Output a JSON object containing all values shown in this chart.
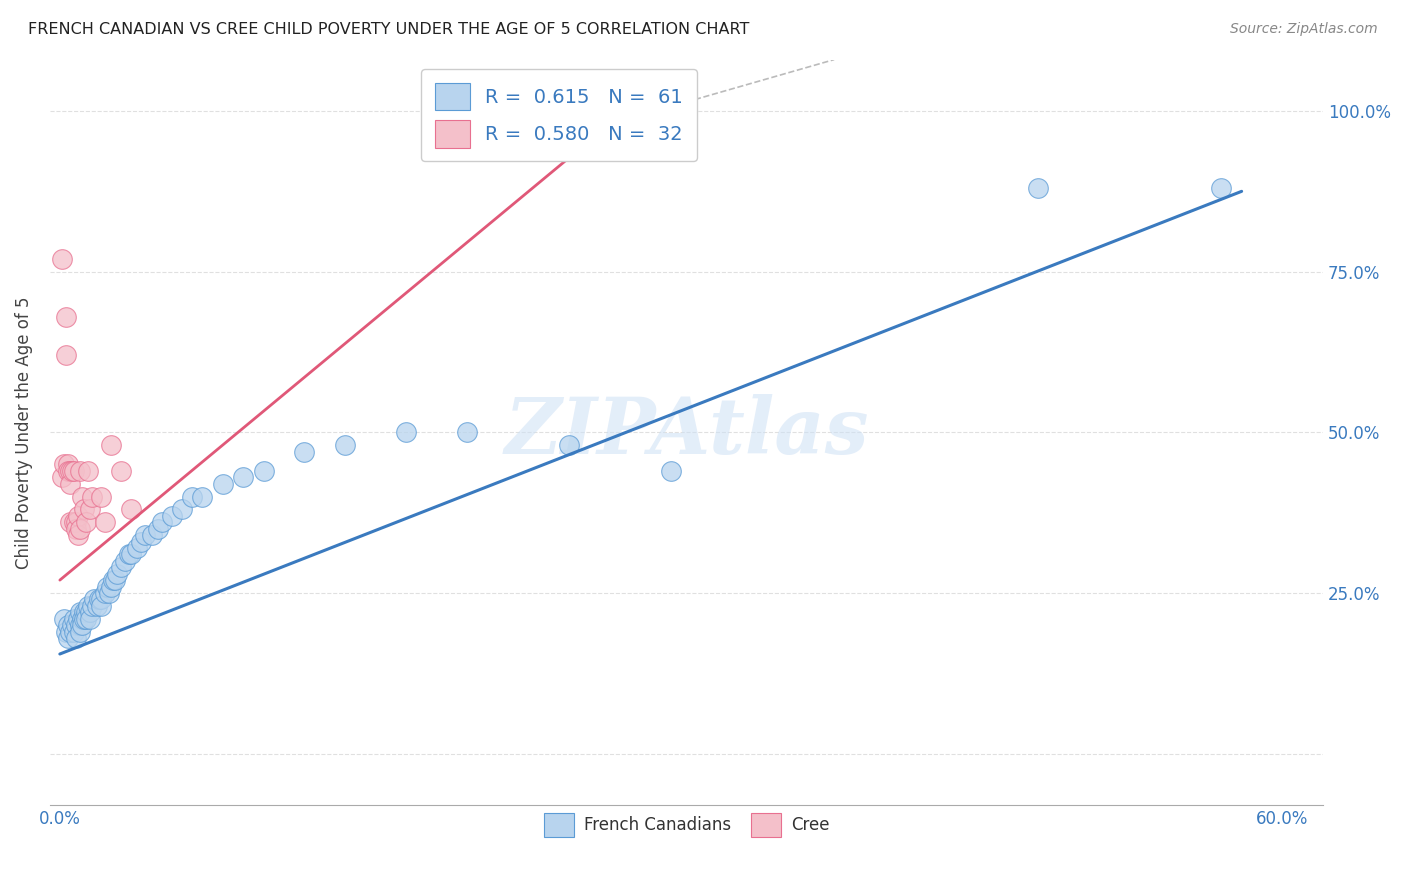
{
  "title": "FRENCH CANADIAN VS CREE CHILD POVERTY UNDER THE AGE OF 5 CORRELATION CHART",
  "source": "Source: ZipAtlas.com",
  "ylabel": "Child Poverty Under the Age of 5",
  "xlim": [
    -0.005,
    0.62
  ],
  "ylim": [
    -0.08,
    1.08
  ],
  "xticks": [
    0.0,
    0.1,
    0.2,
    0.3,
    0.4,
    0.5,
    0.6
  ],
  "xtick_labels": [
    "0.0%",
    "",
    "",
    "",
    "",
    "",
    "60.0%"
  ],
  "yticks": [
    0.0,
    0.25,
    0.5,
    0.75,
    1.0
  ],
  "ytick_labels": [
    "",
    "25.0%",
    "50.0%",
    "75.0%",
    "100.0%"
  ],
  "watermark": "ZIPAtlas",
  "r_fc": 0.615,
  "n_fc": 61,
  "r_cree": 0.58,
  "n_cree": 32,
  "fc_color": "#b8d4ee",
  "cree_color": "#f4c0ca",
  "fc_edge_color": "#5b9bd5",
  "cree_edge_color": "#e87090",
  "fc_line_color": "#3a7abf",
  "cree_line_color": "#e05878",
  "legend_text_color": "#3a7abf",
  "background_color": "#ffffff",
  "grid_color": "#e0e0e0",
  "title_color": "#222222",
  "source_color": "#888888",
  "ylabel_color": "#444444",
  "fc_points_x": [
    0.002,
    0.003,
    0.004,
    0.004,
    0.005,
    0.006,
    0.007,
    0.007,
    0.008,
    0.008,
    0.009,
    0.01,
    0.01,
    0.01,
    0.011,
    0.011,
    0.012,
    0.012,
    0.013,
    0.013,
    0.014,
    0.015,
    0.015,
    0.016,
    0.017,
    0.018,
    0.019,
    0.02,
    0.02,
    0.022,
    0.023,
    0.024,
    0.025,
    0.026,
    0.027,
    0.028,
    0.03,
    0.032,
    0.034,
    0.035,
    0.038,
    0.04,
    0.042,
    0.045,
    0.048,
    0.05,
    0.055,
    0.06,
    0.065,
    0.07,
    0.08,
    0.09,
    0.1,
    0.12,
    0.14,
    0.17,
    0.2,
    0.25,
    0.3,
    0.48,
    0.57
  ],
  "fc_points_y": [
    0.21,
    0.19,
    0.2,
    0.18,
    0.19,
    0.2,
    0.21,
    0.19,
    0.2,
    0.18,
    0.21,
    0.22,
    0.2,
    0.19,
    0.21,
    0.2,
    0.22,
    0.21,
    0.22,
    0.21,
    0.23,
    0.22,
    0.21,
    0.23,
    0.24,
    0.23,
    0.24,
    0.24,
    0.23,
    0.25,
    0.26,
    0.25,
    0.26,
    0.27,
    0.27,
    0.28,
    0.29,
    0.3,
    0.31,
    0.31,
    0.32,
    0.33,
    0.34,
    0.34,
    0.35,
    0.36,
    0.37,
    0.38,
    0.4,
    0.4,
    0.42,
    0.43,
    0.44,
    0.47,
    0.48,
    0.5,
    0.5,
    0.48,
    0.44,
    0.88,
    0.88
  ],
  "cree_points_x": [
    0.001,
    0.001,
    0.002,
    0.003,
    0.003,
    0.004,
    0.004,
    0.005,
    0.005,
    0.005,
    0.006,
    0.007,
    0.007,
    0.008,
    0.008,
    0.009,
    0.009,
    0.01,
    0.01,
    0.011,
    0.012,
    0.013,
    0.014,
    0.015,
    0.016,
    0.02,
    0.022,
    0.025,
    0.03,
    0.035,
    0.25,
    0.265
  ],
  "cree_points_y": [
    0.77,
    0.43,
    0.45,
    0.68,
    0.62,
    0.45,
    0.44,
    0.44,
    0.42,
    0.36,
    0.44,
    0.44,
    0.36,
    0.36,
    0.35,
    0.37,
    0.34,
    0.44,
    0.35,
    0.4,
    0.38,
    0.36,
    0.44,
    0.38,
    0.4,
    0.4,
    0.36,
    0.48,
    0.44,
    0.38,
    0.98,
    0.98
  ],
  "fc_line_x0": 0.0,
  "fc_line_x1": 0.58,
  "fc_line_y0": 0.155,
  "fc_line_y1": 0.875,
  "cree_line_x0": 0.0,
  "cree_line_x1": 0.27,
  "cree_line_y0": 0.27,
  "cree_line_y1": 0.98
}
